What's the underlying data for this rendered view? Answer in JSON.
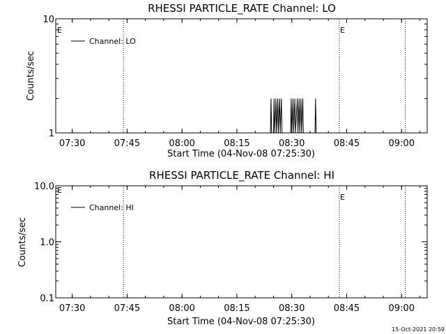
{
  "timestamp": "15-Oct-2021 20:59",
  "chart_data": [
    {
      "type": "line",
      "title": "RHESSI PARTICLE_RATE Channel: LO",
      "xlabel": "Start Time (04-Nov-08 07:25:30)",
      "ylabel": "Counts/sec",
      "yscale": "log",
      "xlim": [
        "07:25:30",
        "09:07:00"
      ],
      "ylim": [
        1,
        10
      ],
      "x_ticks": [
        "07:30",
        "07:45",
        "08:00",
        "08:15",
        "08:30",
        "08:45",
        "09:00"
      ],
      "y_ticks": [
        {
          "value": 1,
          "label": "1"
        },
        {
          "value": 10,
          "label": "10"
        }
      ],
      "series": [
        {
          "name": "Channel: LO",
          "color": "#000000",
          "points": [
            [
              "08:24:10",
              1
            ],
            [
              "08:24:20",
              2
            ],
            [
              "08:24:30",
              1
            ],
            [
              "08:25:00",
              1
            ],
            [
              "08:25:10",
              2
            ],
            [
              "08:25:20",
              1
            ],
            [
              "08:25:40",
              2
            ],
            [
              "08:25:50",
              1
            ],
            [
              "08:26:10",
              2
            ],
            [
              "08:26:20",
              1
            ],
            [
              "08:26:40",
              2
            ],
            [
              "08:26:50",
              1
            ],
            [
              "08:27:10",
              2
            ],
            [
              "08:27:20",
              1
            ],
            [
              "08:29:40",
              1
            ],
            [
              "08:29:50",
              2
            ],
            [
              "08:30:00",
              1
            ],
            [
              "08:30:20",
              2
            ],
            [
              "08:30:30",
              1
            ],
            [
              "08:30:50",
              2
            ],
            [
              "08:31:00",
              1
            ],
            [
              "08:31:30",
              2
            ],
            [
              "08:31:40",
              1
            ],
            [
              "08:32:00",
              2
            ],
            [
              "08:32:10",
              1
            ],
            [
              "08:32:30",
              2
            ],
            [
              "08:32:40",
              1
            ],
            [
              "08:33:00",
              2
            ],
            [
              "08:33:10",
              1
            ],
            [
              "08:36:20",
              1
            ],
            [
              "08:36:30",
              2
            ],
            [
              "08:36:40",
              1
            ]
          ]
        }
      ],
      "event_lines": [
        {
          "time": "07:44:00",
          "label": ""
        },
        {
          "time": "08:43:00",
          "label": "E"
        },
        {
          "time": "09:01:00",
          "label": ""
        }
      ],
      "left_marker_label": "E",
      "legend_position": "top-left",
      "grid": false
    },
    {
      "type": "line",
      "title": "RHESSI PARTICLE_RATE Channel: HI",
      "xlabel": "Start Time (04-Nov-08 07:25:30)",
      "ylabel": "Counts/sec",
      "yscale": "log",
      "xlim": [
        "07:25:30",
        "09:07:00"
      ],
      "ylim": [
        0.1,
        10
      ],
      "x_ticks": [
        "07:30",
        "07:45",
        "08:00",
        "08:15",
        "08:30",
        "08:45",
        "09:00"
      ],
      "y_ticks": [
        {
          "value": 0.1,
          "label": "0.1"
        },
        {
          "value": 1,
          "label": "1.0"
        },
        {
          "value": 10,
          "label": "10.0"
        }
      ],
      "series": [
        {
          "name": "Channel: HI",
          "color": "#000000",
          "points": []
        }
      ],
      "event_lines": [
        {
          "time": "07:44:00",
          "label": ""
        },
        {
          "time": "08:43:00",
          "label": "E"
        },
        {
          "time": "09:01:00",
          "label": ""
        }
      ],
      "left_marker_label": "E",
      "legend_position": "top-left",
      "grid": false
    }
  ]
}
